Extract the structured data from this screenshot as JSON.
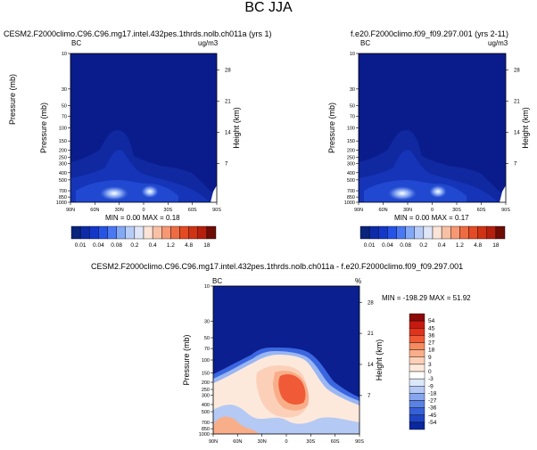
{
  "title": "BC JJA",
  "colors": {
    "plot_background": "#0a1c8c",
    "deep_blue": "#0d2aa8"
  },
  "panels": {
    "left": {
      "title": "CESM2.F2000climo.C96.C96.mg17.intel.432pes.1thrds.nolb.ch011a (yrs 1)",
      "corner_left": "BC",
      "corner_right": "ug/m3",
      "stats": "MIN =  0.00  MAX =  0.18"
    },
    "right": {
      "title": "f.e20.F2000climo.f09_f09.297.001 (yrs 2-11)",
      "corner_left": "BC",
      "corner_right": "ug/m3",
      "stats": "MIN =  0.00  MAX =  0.17"
    },
    "diff": {
      "title": "CESM2.F2000climo.C96.C96.mg17.intel.432pes.1thrds.nolb.ch011a - f.e20.F2000climo.f09_f09.297.001",
      "corner_left": "BC",
      "corner_right": "%",
      "stats": "MIN = -198.29  MAX =  51.92"
    }
  },
  "axes": {
    "ylabel": "Pressure (mb)",
    "ylabel_right": "Height (km)",
    "pressure_ticks": [
      "10",
      "30",
      "50",
      "70",
      "100",
      "150",
      "200",
      "250",
      "300",
      "400",
      "500",
      "700",
      "850",
      "1000"
    ],
    "height_ticks": [
      "28",
      "21",
      "14",
      "7"
    ],
    "lat_ticks": [
      "90N",
      "60N",
      "30N",
      "0",
      "30S",
      "60S",
      "90S"
    ]
  },
  "chart_data": [
    {
      "type": "heatmap",
      "title": "CESM2.F2000climo.C96.C96.mg17.intel.432pes.1thrds.nolb.ch011a (yrs 1)",
      "xlabel": "",
      "ylabel": "Pressure (mb)",
      "xlim": [
        90,
        -90
      ],
      "ylim": [
        1000,
        10
      ],
      "units": "ug/m3",
      "min": 0.0,
      "max": 0.18,
      "colorbar_levels": [
        "0.01",
        "0.04",
        "0.08",
        "0.2",
        "0.4",
        "1.2",
        "4.8",
        "18"
      ],
      "colorbar_colors": [
        "#08247c",
        "#0d2aa8",
        "#1537c8",
        "#2553e6",
        "#4a78f2",
        "#82a8f6",
        "#b8ccf8",
        "#dfe6f7",
        "#fbe3d7",
        "#f8c1a5",
        "#f59873",
        "#ef6c43",
        "#e44b24",
        "#cf3214",
        "#b51f0d",
        "#6e0d05"
      ]
    },
    {
      "type": "heatmap",
      "title": "f.e20.F2000climo.f09_f09.297.001 (yrs 2-11)",
      "xlabel": "",
      "ylabel": "Pressure (mb)",
      "xlim": [
        90,
        -90
      ],
      "ylim": [
        1000,
        10
      ],
      "units": "ug/m3",
      "min": 0.0,
      "max": 0.17,
      "colorbar_levels": [
        "0.01",
        "0.04",
        "0.08",
        "0.2",
        "0.4",
        "1.2",
        "4.8",
        "18"
      ],
      "colorbar_colors": [
        "#08247c",
        "#0d2aa8",
        "#1537c8",
        "#2553e6",
        "#4a78f2",
        "#82a8f6",
        "#b8ccf8",
        "#dfe6f7",
        "#fbe3d7",
        "#f8c1a5",
        "#f59873",
        "#ef6c43",
        "#e44b24",
        "#cf3214",
        "#b51f0d",
        "#6e0d05"
      ]
    },
    {
      "type": "heatmap",
      "title": "CESM2.F2000climo.C96.C96.mg17.intel.432pes.1thrds.nolb.ch011a - f.e20.F2000climo.f09_f09.297.001",
      "xlabel": "",
      "ylabel": "Pressure (mb)",
      "xlim": [
        90,
        -90
      ],
      "ylim": [
        1000,
        10
      ],
      "units": "%",
      "min": -198.29,
      "max": 51.92,
      "colorbar_levels": [
        "54",
        "45",
        "36",
        "27",
        "18",
        "9",
        "3",
        "0",
        "-3",
        "-9",
        "-18",
        "-27",
        "-36",
        "-45",
        "-54"
      ],
      "colorbar_colors": [
        "#8b0a0a",
        "#c51b0f",
        "#e3321c",
        "#f05a36",
        "#f68a60",
        "#f9ae8a",
        "#fcd0b8",
        "#fde9dc",
        "#ffffff",
        "#dce8fa",
        "#b4c9f4",
        "#88a6ee",
        "#5a82e4",
        "#3660d6",
        "#1e44c2",
        "#0b279e"
      ]
    }
  ]
}
